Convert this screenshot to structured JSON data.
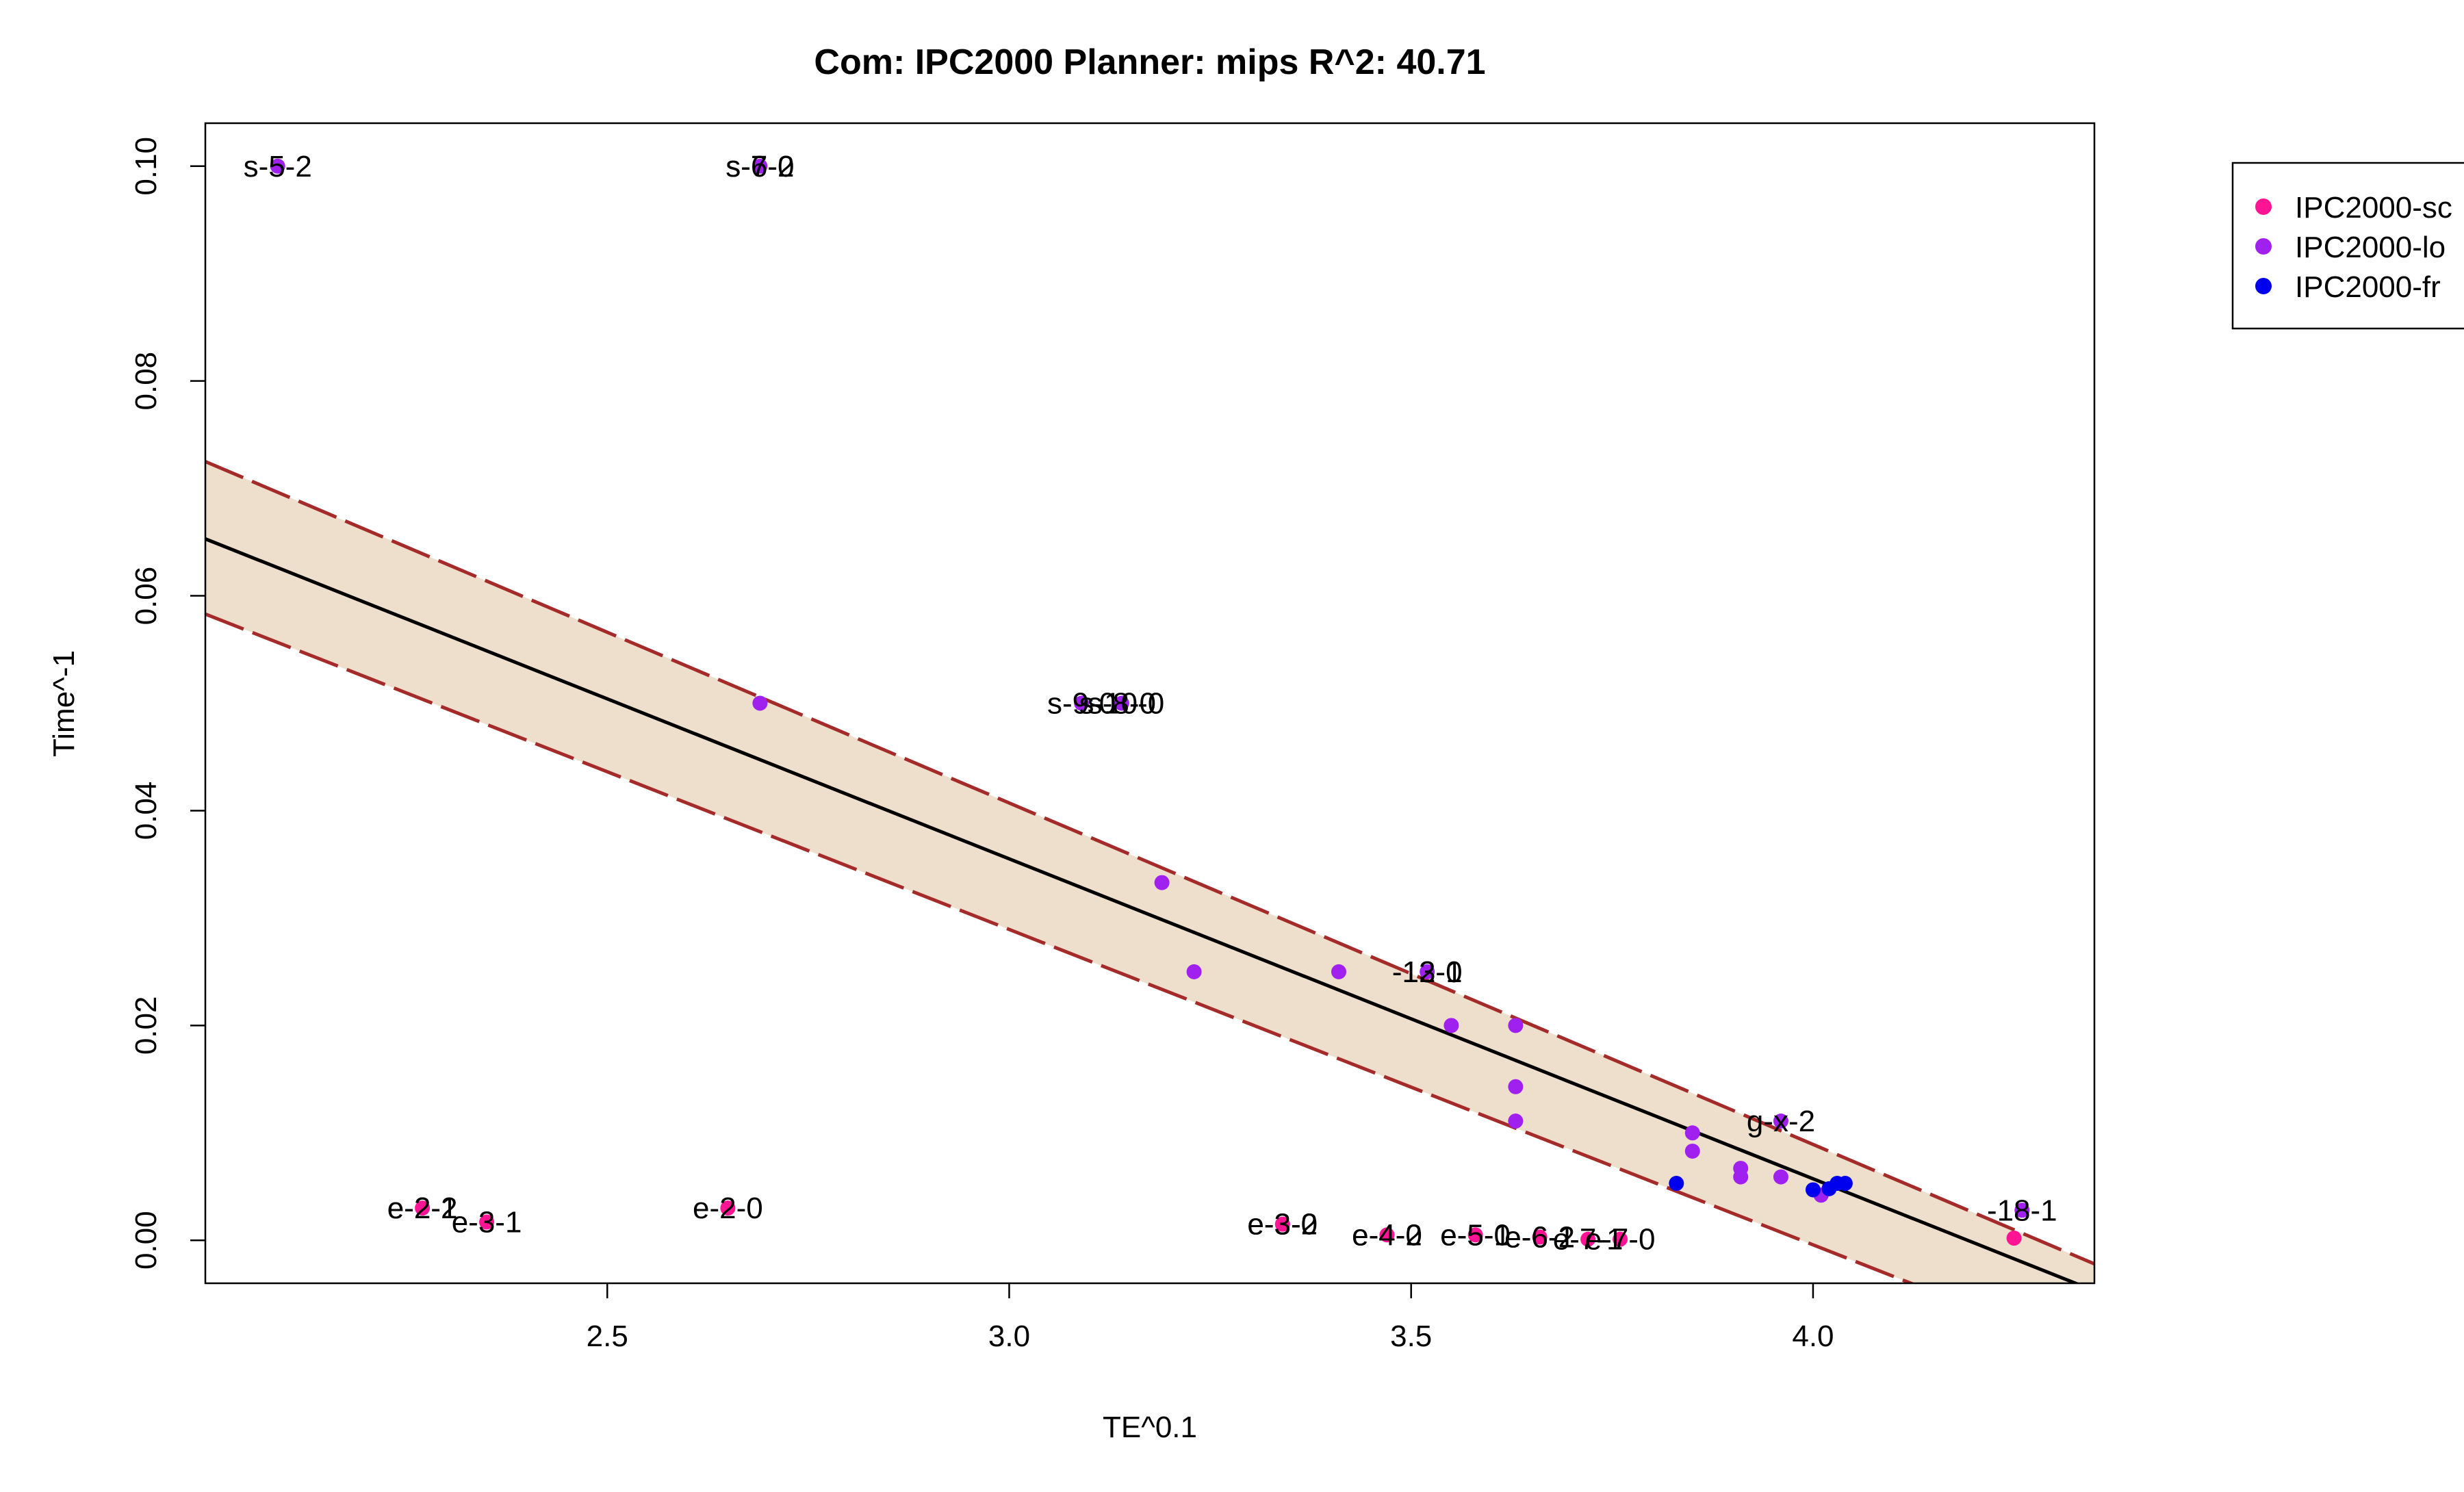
{
  "chart_data": {
    "type": "scatter",
    "title": "Com: IPC2000 Planner: mips R^2: 40.71",
    "xlabel": "TE^0.1",
    "ylabel": "Time^-1",
    "xlim": [
      2.0,
      4.35
    ],
    "ylim": [
      -0.004,
      0.104
    ],
    "x_ticks": [
      2.5,
      3.0,
      3.5,
      4.0
    ],
    "x_tick_labels": [
      "2.5",
      "3.0",
      "3.5",
      "4.0"
    ],
    "y_ticks": [
      0.0,
      0.02,
      0.04,
      0.06,
      0.08,
      0.1
    ],
    "y_tick_labels": [
      "0.00",
      "0.02",
      "0.04",
      "0.06",
      "0.08",
      "0.10"
    ],
    "grid": false,
    "legend_position": "top-right, outside plot area (cut off)",
    "legend": [
      {
        "label": "IPC2000-sc",
        "color": "#ff1493"
      },
      {
        "label": "IPC2000-lo",
        "color": "#a020f0"
      },
      {
        "label": "IPC2000-fr",
        "color": "#0000ee"
      }
    ],
    "fit_line": {
      "x": [
        2.0,
        4.35
      ],
      "y": [
        0.0653,
        -0.0047
      ],
      "color": "#000000"
    },
    "band_upper": {
      "x": [
        2.0,
        4.35
      ],
      "y": [
        0.0725,
        -0.0022
      ],
      "color": "#a52a2a"
    },
    "band_lower": {
      "x": [
        2.0,
        4.35
      ],
      "y": [
        0.0583,
        -0.0107
      ],
      "color": "#a52a2a"
    },
    "band_fill": "#eedfcc",
    "series": [
      {
        "name": "IPC2000-sc",
        "color": "#ff1493",
        "points": [
          [
            2.27,
            0.003
          ],
          [
            2.35,
            0.0017
          ],
          [
            2.65,
            0.003
          ],
          [
            3.34,
            0.0015
          ],
          [
            3.47,
            0.0005
          ],
          [
            3.58,
            0.0005
          ],
          [
            3.66,
            0.0003
          ],
          [
            3.72,
            0.0001
          ],
          [
            3.76,
            0.0001
          ],
          [
            4.25,
            0.0002
          ]
        ]
      },
      {
        "name": "IPC2000-lo",
        "color": "#a020f0",
        "points": [
          [
            2.09,
            0.1
          ],
          [
            2.69,
            0.1
          ],
          [
            2.69,
            0.05
          ],
          [
            3.09,
            0.05
          ],
          [
            3.14,
            0.05
          ],
          [
            3.19,
            0.0333
          ],
          [
            3.23,
            0.025
          ],
          [
            3.41,
            0.025
          ],
          [
            3.52,
            0.025
          ],
          [
            3.55,
            0.02
          ],
          [
            3.63,
            0.02
          ],
          [
            3.63,
            0.0143
          ],
          [
            3.63,
            0.0111
          ],
          [
            3.85,
            0.01
          ],
          [
            3.85,
            0.0083
          ],
          [
            3.91,
            0.0067
          ],
          [
            3.91,
            0.0059
          ],
          [
            3.96,
            0.0059
          ],
          [
            3.96,
            0.0111
          ],
          [
            4.01,
            0.0042
          ],
          [
            4.26,
            0.0028
          ]
        ]
      },
      {
        "name": "IPC2000-fr",
        "color": "#0000ee",
        "points": [
          [
            3.83,
            0.0053
          ],
          [
            4.0,
            0.0047
          ],
          [
            4.02,
            0.0048
          ],
          [
            4.03,
            0.0053
          ],
          [
            4.04,
            0.0053
          ]
        ]
      }
    ],
    "point_labels": [
      {
        "text": "s-5-2",
        "x": 2.09,
        "y": 0.1
      },
      {
        "text": "s-6-2",
        "x": 2.69,
        "y": 0.1
      },
      {
        "text": "s-7-0",
        "x": 2.69,
        "y": 0.1
      },
      {
        "text": "s-9-0",
        "x": 3.09,
        "y": 0.05
      },
      {
        "text": "s-10-0",
        "x": 3.14,
        "y": 0.05
      },
      {
        "text": "s-8-0",
        "x": 3.14,
        "y": 0.05
      },
      {
        "text": "-12-1",
        "x": 3.52,
        "y": 0.025
      },
      {
        "text": "-13-0",
        "x": 3.52,
        "y": 0.025
      },
      {
        "text": "g-x-2",
        "x": 3.96,
        "y": 0.0111
      },
      {
        "text": "-18-1",
        "x": 4.26,
        "y": 0.0028
      },
      {
        "text": "e-2-1",
        "x": 2.27,
        "y": 0.003
      },
      {
        "text": "e-2-2",
        "x": 2.27,
        "y": 0.003
      },
      {
        "text": "e-3-1",
        "x": 2.35,
        "y": 0.0017
      },
      {
        "text": "e-2-0",
        "x": 2.65,
        "y": 0.003
      },
      {
        "text": "e-3-0",
        "x": 3.34,
        "y": 0.0015
      },
      {
        "text": "e-3-2",
        "x": 3.34,
        "y": 0.0015
      },
      {
        "text": "e-4-0",
        "x": 3.47,
        "y": 0.0005
      },
      {
        "text": "e-4-2",
        "x": 3.47,
        "y": 0.0005
      },
      {
        "text": "e-5-0",
        "x": 3.58,
        "y": 0.0005
      },
      {
        "text": "e-5-1",
        "x": 3.58,
        "y": 0.0005
      },
      {
        "text": "e-6-2",
        "x": 3.66,
        "y": 0.0003
      },
      {
        "text": "e-6-1",
        "x": 3.66,
        "y": 0.0003
      },
      {
        "text": "e-7-1",
        "x": 3.72,
        "y": 0.0001
      },
      {
        "text": "e-7-0",
        "x": 3.76,
        "y": 0.0001
      }
    ]
  }
}
